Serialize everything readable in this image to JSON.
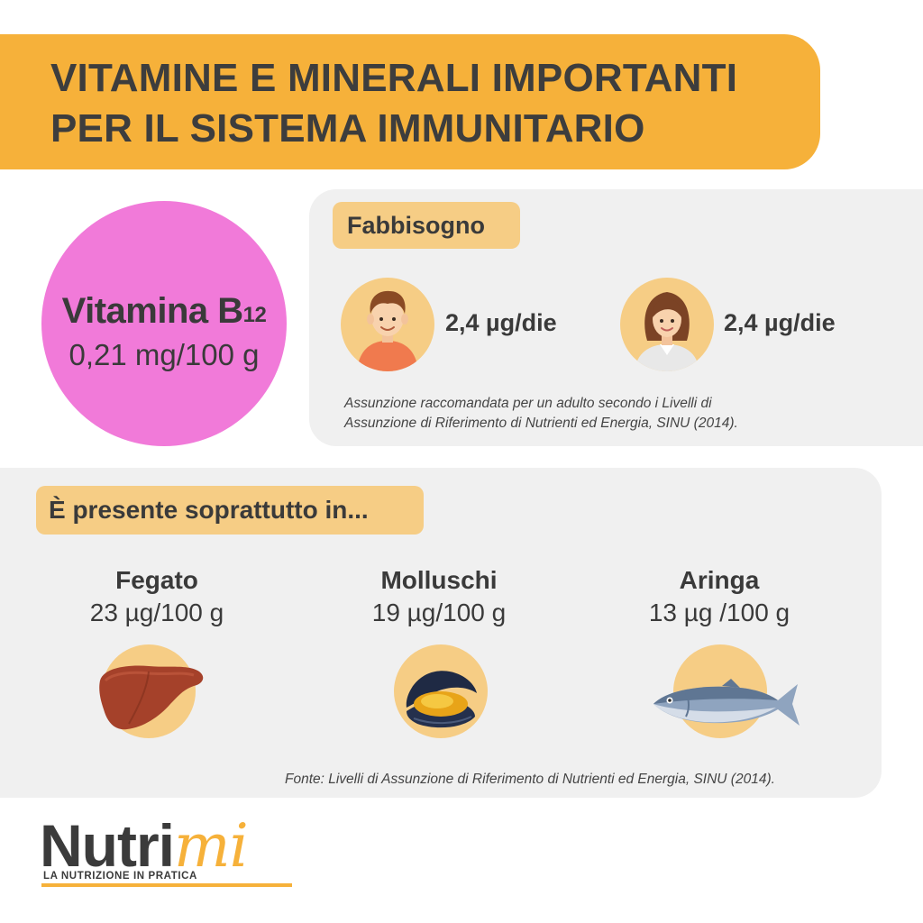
{
  "header": {
    "title_line1": "VITAMINE E MINERALI IMPORTANTI",
    "title_line2": "PER IL SISTEMA IMMUNITARIO"
  },
  "vitamin": {
    "name": "Vitamina B",
    "subscript": "12",
    "amount": "0,21 mg/100 g"
  },
  "requirement": {
    "tag": "Fabbisogno",
    "people": [
      {
        "icon": "man-icon",
        "value": "2,4 µg/die"
      },
      {
        "icon": "woman-icon",
        "value": "2,4 µg/die"
      }
    ],
    "note_line1": "Assunzione raccomandata per un adulto secondo i Livelli di",
    "note_line2": "Assunzione di Riferimento di Nutrienti ed Energia, SINU (2014)."
  },
  "sources": {
    "tag": "È presente soprattutto in...",
    "foods": [
      {
        "name": "Fegato",
        "amount": "23 µg/100 g",
        "icon": "liver-icon"
      },
      {
        "name": "Molluschi",
        "amount": "19 µg/100 g",
        "icon": "mussel-icon"
      },
      {
        "name": "Aringa",
        "amount": "13 µg /100 g",
        "icon": "herring-icon"
      }
    ],
    "footnote": "Fonte: Livelli di Assunzione di Riferimento di Nutrienti ed Energia, SINU (2014)."
  },
  "logo": {
    "brand_main": "Nutri",
    "brand_accent": "mi",
    "tagline": "LA NUTRIZIONE IN PRATICA"
  },
  "colors": {
    "banner": "#f6b13a",
    "vitamin_circle": "#f17ad9",
    "panel": "#f0f0f0",
    "tag": "#f6cd85"
  }
}
